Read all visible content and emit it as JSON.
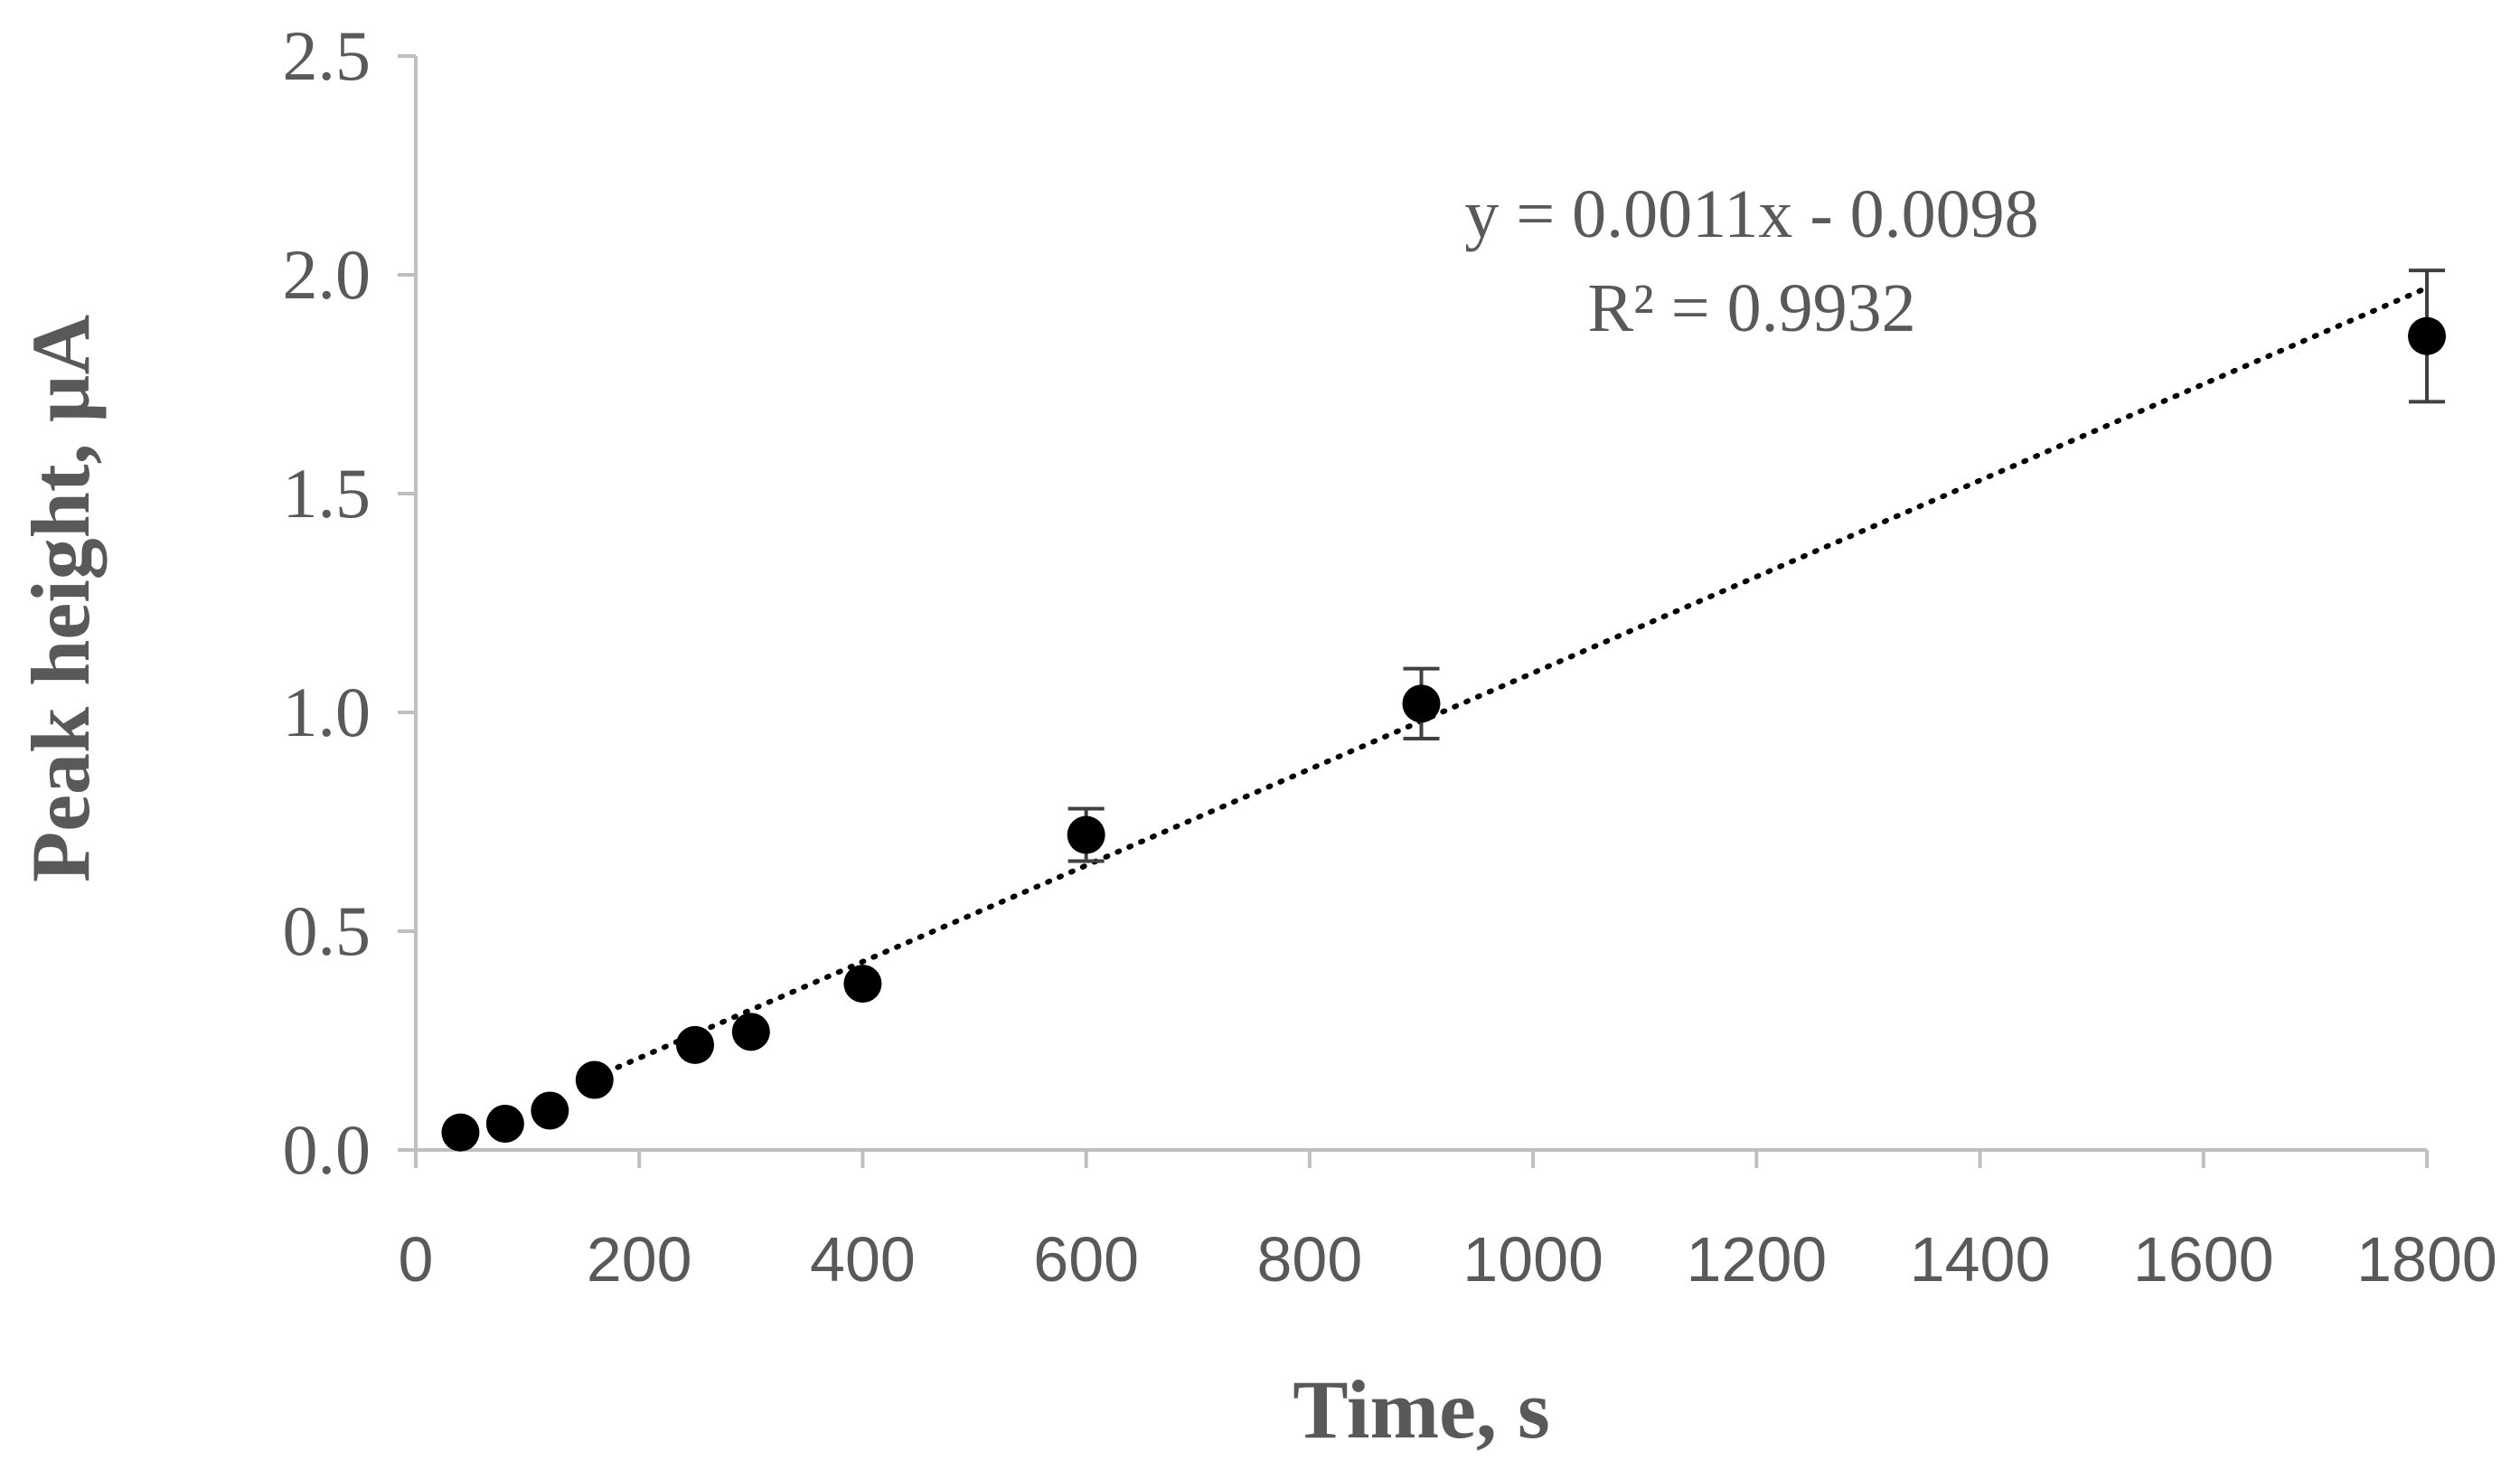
{
  "chart_data": {
    "type": "scatter",
    "title": "",
    "xlabel": "Time, s",
    "ylabel": "Peak height, µA",
    "xlim": [
      0,
      1800
    ],
    "ylim": [
      0,
      2.5
    ],
    "xticks": [
      "0",
      "200",
      "400",
      "600",
      "800",
      "1000",
      "1200",
      "1400",
      "1600",
      "1800"
    ],
    "yticks": [
      "0.0",
      "0.5",
      "1.0",
      "1.5",
      "2.0",
      "2.5"
    ],
    "grid": false,
    "legend": "none",
    "series": [
      {
        "x": [
          40,
          80,
          120,
          160,
          250,
          300,
          400,
          600,
          900,
          1800
        ],
        "y": [
          0.04,
          0.06,
          0.09,
          0.16,
          0.24,
          0.27,
          0.38,
          0.72,
          1.02,
          1.86
        ],
        "error": [
          0.01,
          0.01,
          0.01,
          0.01,
          0.01,
          0.01,
          0.01,
          0.06,
          0.08,
          0.15
        ],
        "color": "#000000"
      }
    ],
    "trendline": {
      "type": "linear",
      "slope": 0.0011,
      "intercept": -0.0098,
      "x_range": [
        160,
        1800
      ],
      "style": "dotted",
      "color": "#000000"
    },
    "annotations": {
      "equation": "y = 0.0011x - 0.0098",
      "r_squared": "R² = 0.9932"
    }
  }
}
